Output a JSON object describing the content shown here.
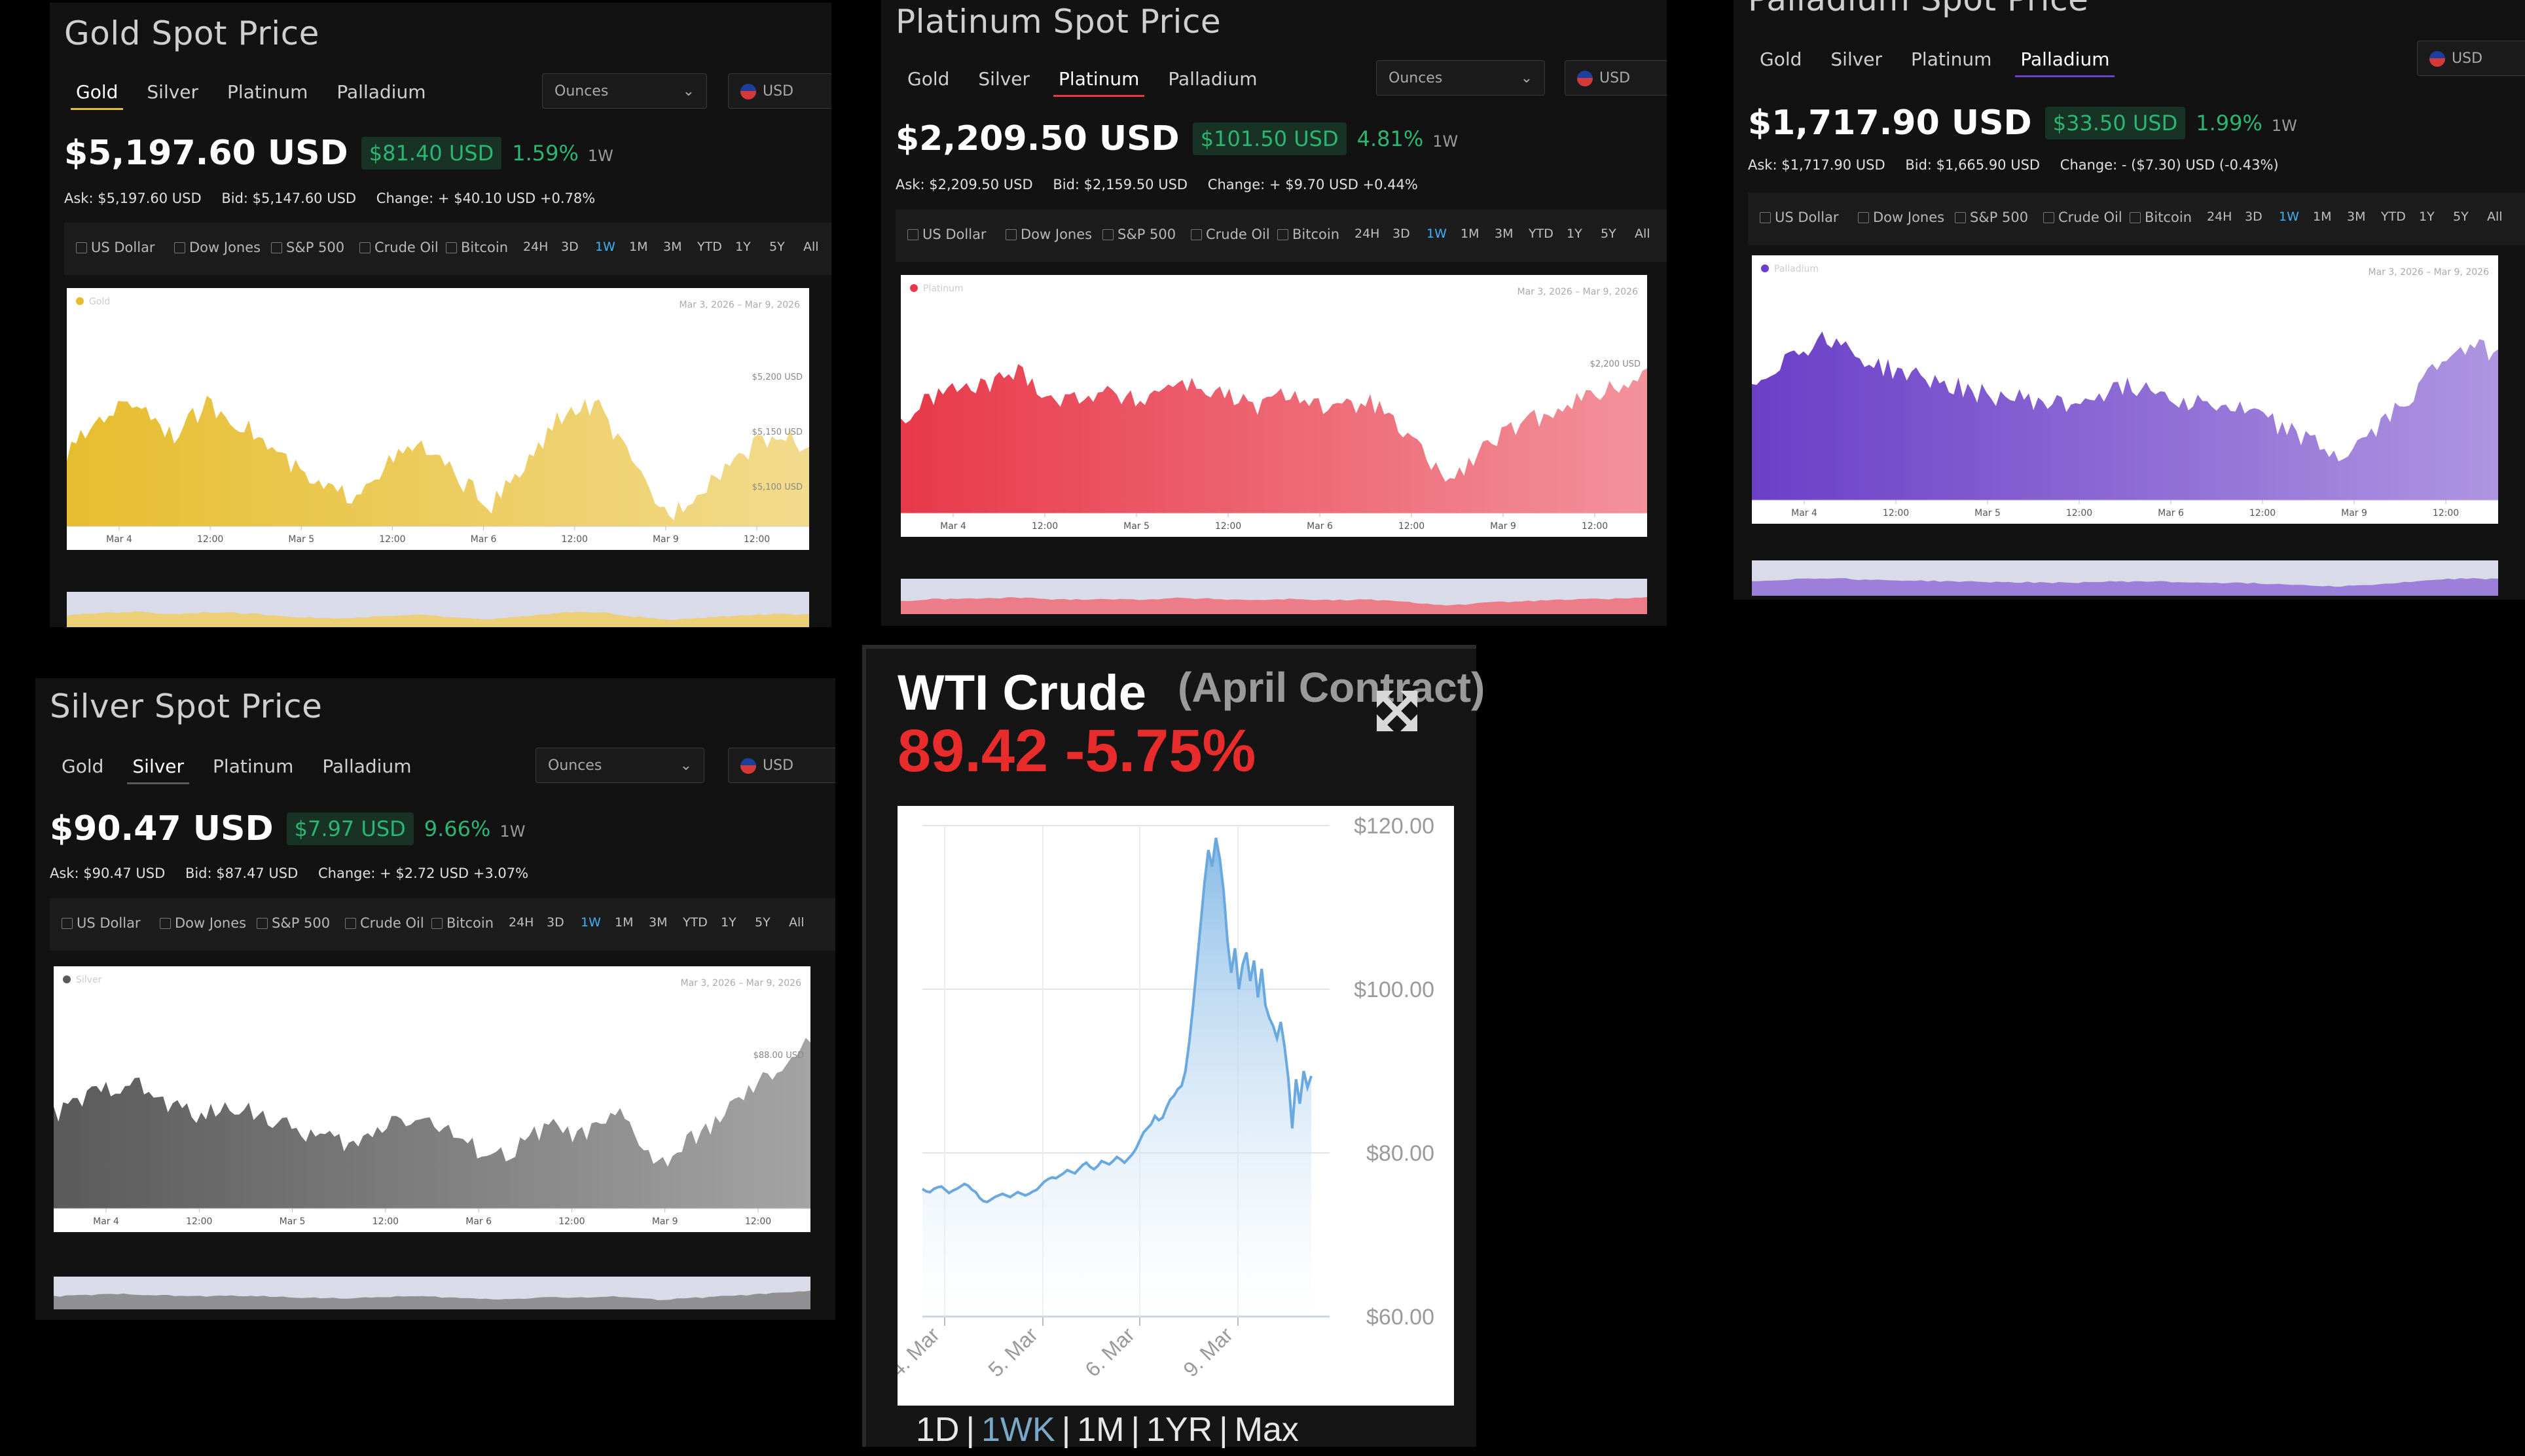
{
  "common": {
    "tabs": [
      "Gold",
      "Silver",
      "Platinum",
      "Palladium"
    ],
    "unit": "Ounces",
    "currency": "USD",
    "compare": [
      "US Dollar",
      "Dow Jones",
      "S&P 500",
      "Crude Oil",
      "Bitcoin"
    ],
    "ranges": [
      "24H",
      "3D",
      "1W",
      "1M",
      "3M",
      "YTD",
      "1Y",
      "5Y",
      "All"
    ],
    "selected_range": "1W",
    "x_ticks": [
      "Mar 4",
      "12:00",
      "Mar 5",
      "12:00",
      "Mar 6",
      "12:00",
      "Mar 9",
      "12:00"
    ],
    "date_from": "Mar 3, 2026",
    "date_sep": "–",
    "date_to": "Mar 9, 2026"
  },
  "panels": {
    "gold": {
      "title": "Gold Spot Price",
      "active_tab": "Gold",
      "price": "$5,197.60 USD",
      "change": "$81.40 USD",
      "change_pct": "1.59%",
      "period": "1W",
      "ask": "Ask: $5,197.60 USD",
      "bid": "Bid: $5,147.60 USD",
      "daily_change": "Change: + $40.10 USD +0.78%",
      "series_label": "Gold",
      "y_ticks": [
        "$5,200 USD",
        "$5,150 USD",
        "$5,100 USD"
      ],
      "color": "#e7bd2f"
    },
    "platinum": {
      "title": "Platinum Spot Price",
      "active_tab": "Platinum",
      "price": "$2,209.50 USD",
      "change": "$101.50 USD",
      "change_pct": "4.81%",
      "period": "1W",
      "ask": "Ask: $2,209.50 USD",
      "bid": "Bid: $2,159.50 USD",
      "daily_change": "Change: + $9.70 USD +0.44%",
      "series_label": "Platinum",
      "y_ticks": [
        "$2,200 USD"
      ],
      "color": "#e8394a"
    },
    "palladium": {
      "title": "Palladium Spot Price",
      "active_tab": "Palladium",
      "price": "$1,717.90 USD",
      "change": "$33.50 USD",
      "change_pct": "1.99%",
      "period": "1W",
      "ask": "Ask: $1,717.90 USD",
      "bid": "Bid: $1,665.90 USD",
      "daily_change": "Change: - ($7.30) USD (-0.43%)",
      "series_label": "Palladium",
      "y_ticks": [],
      "color": "#6b3fc8"
    },
    "silver": {
      "title": "Silver Spot Price",
      "active_tab": "Silver",
      "price": "$90.47 USD",
      "change": "$7.97 USD",
      "change_pct": "9.66%",
      "period": "1W",
      "ask": "Ask: $90.47 USD",
      "bid": "Bid: $87.47 USD",
      "daily_change": "Change: + $2.72 USD +3.07%",
      "series_label": "Silver",
      "y_ticks": [
        "$88.00 USD"
      ],
      "color": "#5a5a5a"
    }
  },
  "wti": {
    "title": "WTI Crude",
    "contract": "(April Contract)",
    "price": "89.42 -5.75%",
    "price_color": "#e82c2c",
    "ranges": [
      "1D",
      "1WK",
      "1M",
      "1YR",
      "Max"
    ],
    "selected_range": "1WK",
    "chart_data": {
      "type": "area",
      "title": "WTI Crude",
      "xlabel": "",
      "ylabel": "",
      "x_ticks": [
        "4. Mar",
        "5. Mar",
        "6. Mar",
        "9. Mar"
      ],
      "y_ticks": [
        "$120.00",
        "$100.00",
        "$80.00",
        "$60.00"
      ],
      "ylim": [
        60,
        120
      ],
      "series": [
        {
          "values": [
            75.6,
            75.3,
            75.2,
            75.6,
            75.8,
            75.9,
            75.5,
            75.1,
            75.4,
            75.6,
            75.9,
            76.2,
            76.0,
            75.5,
            75.2,
            74.5,
            74.1,
            74.0,
            74.3,
            74.6,
            74.8,
            75.0,
            74.8,
            74.6,
            74.9,
            75.2,
            75.0,
            74.8,
            75.0,
            75.3,
            75.5,
            76.0,
            76.5,
            76.8,
            77.0,
            76.9,
            77.2,
            77.5,
            77.9,
            77.7,
            77.5,
            78.0,
            78.5,
            78.8,
            78.3,
            78.0,
            78.4,
            79.0,
            78.8,
            78.6,
            79.0,
            79.5,
            79.2,
            78.8,
            79.3,
            79.8,
            80.5,
            81.5,
            82.5,
            83.0,
            83.5,
            84.5,
            84.0,
            84.3,
            85.5,
            86.5,
            87.0,
            87.8,
            88.2,
            90.0,
            93.5,
            98.0,
            103.0,
            108.0,
            113.0,
            117.0,
            115.0,
            118.5,
            116.0,
            112.0,
            106.0,
            102.0,
            105.0,
            100.0,
            103.0,
            104.5,
            101.0,
            103.5,
            99.0,
            102.5,
            98.0,
            96.5,
            95.5,
            94.0,
            96.0,
            93.0,
            89.0,
            83.0,
            89.0,
            86.0,
            90.0,
            88.0,
            89.4
          ]
        }
      ]
    }
  }
}
